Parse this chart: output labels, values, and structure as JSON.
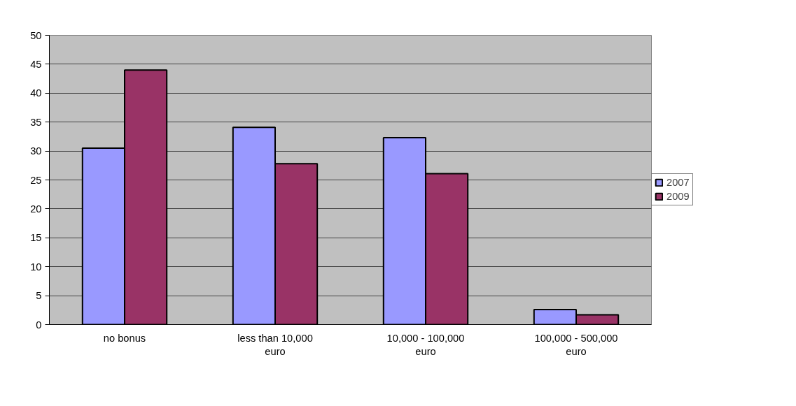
{
  "chart_data": {
    "type": "bar",
    "categories": [
      "no bonus",
      "less than 10,000 euro",
      "10,000 - 100,000 euro",
      "100,000 - 500,000 euro"
    ],
    "series": [
      {
        "name": "2007",
        "color": "#9999ff",
        "values": [
          30.5,
          34.1,
          32.3,
          2.6
        ]
      },
      {
        "name": "2009",
        "color": "#993366",
        "values": [
          44,
          27.8,
          26.1,
          1.7
        ]
      }
    ],
    "ylim": [
      0,
      50
    ],
    "yticks": [
      0,
      5,
      10,
      15,
      20,
      25,
      30,
      35,
      40,
      45,
      50
    ],
    "grid": "y",
    "legend": "right"
  }
}
